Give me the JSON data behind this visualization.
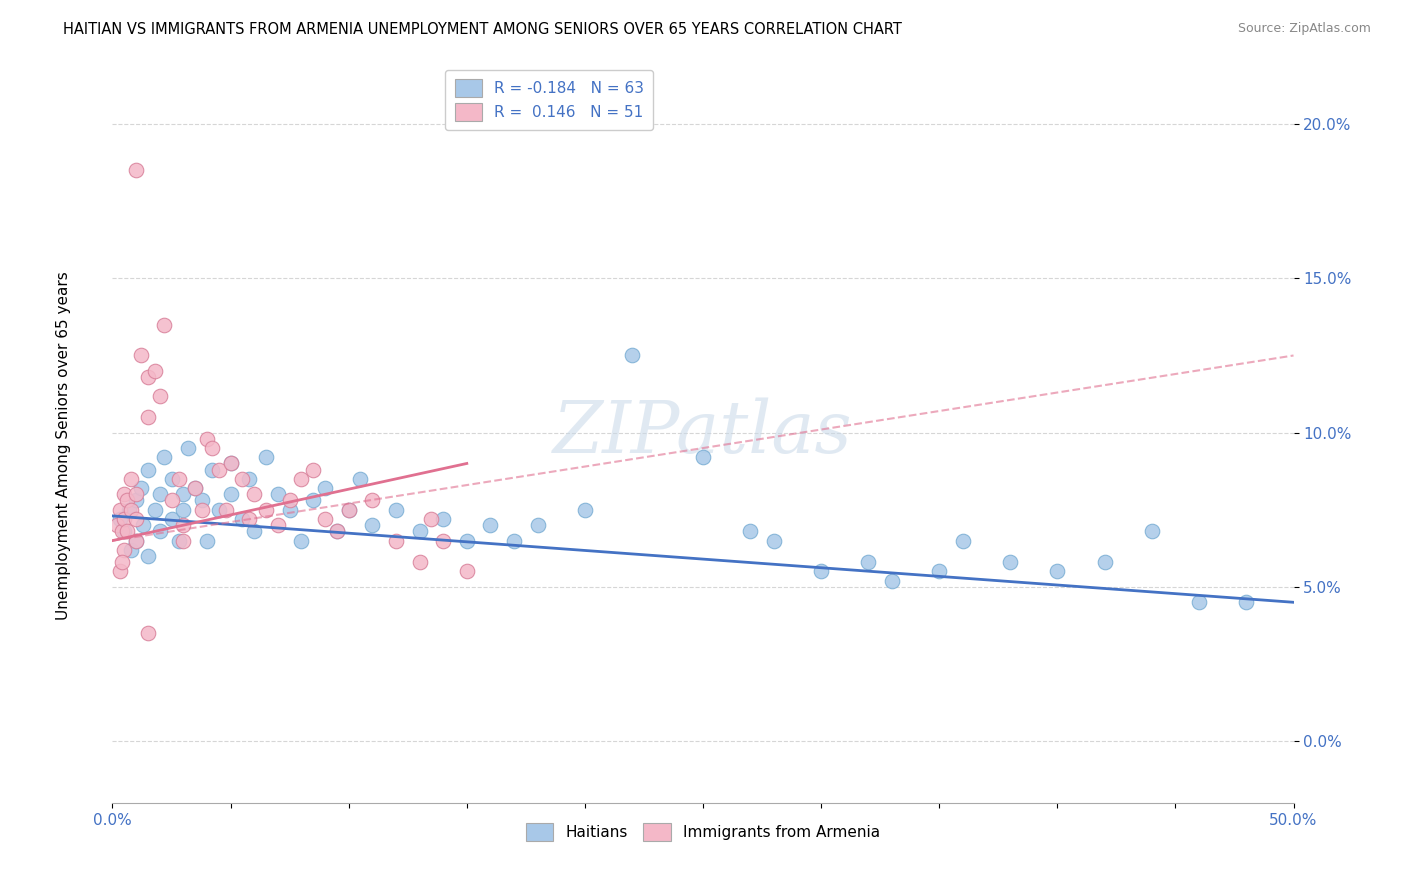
{
  "title": "HAITIAN VS IMMIGRANTS FROM ARMENIA UNEMPLOYMENT AMONG SENIORS OVER 65 YEARS CORRELATION CHART",
  "source": "Source: ZipAtlas.com",
  "ylabel": "Unemployment Among Seniors over 65 years",
  "ytick_values": [
    0.0,
    5.0,
    10.0,
    15.0,
    20.0
  ],
  "xlim": [
    0.0,
    50.0
  ],
  "ylim": [
    -2.0,
    22.0
  ],
  "legend_blue_label": "R = -0.184   N = 63",
  "legend_pink_label": "R =  0.146   N = 51",
  "legend_blue_color": "#a8c8e8",
  "legend_pink_color": "#f4b8c8",
  "watermark_text": "ZIPatlas",
  "blue_scatter": [
    [
      0.3,
      7.2
    ],
    [
      0.5,
      6.8
    ],
    [
      0.7,
      7.5
    ],
    [
      0.8,
      6.2
    ],
    [
      1.0,
      7.8
    ],
    [
      1.0,
      6.5
    ],
    [
      1.2,
      8.2
    ],
    [
      1.3,
      7.0
    ],
    [
      1.5,
      8.8
    ],
    [
      1.5,
      6.0
    ],
    [
      1.8,
      7.5
    ],
    [
      2.0,
      8.0
    ],
    [
      2.0,
      6.8
    ],
    [
      2.2,
      9.2
    ],
    [
      2.5,
      8.5
    ],
    [
      2.5,
      7.2
    ],
    [
      2.8,
      6.5
    ],
    [
      3.0,
      8.0
    ],
    [
      3.0,
      7.5
    ],
    [
      3.2,
      9.5
    ],
    [
      3.5,
      8.2
    ],
    [
      3.8,
      7.8
    ],
    [
      4.0,
      6.5
    ],
    [
      4.2,
      8.8
    ],
    [
      4.5,
      7.5
    ],
    [
      5.0,
      9.0
    ],
    [
      5.0,
      8.0
    ],
    [
      5.5,
      7.2
    ],
    [
      5.8,
      8.5
    ],
    [
      6.0,
      6.8
    ],
    [
      6.5,
      9.2
    ],
    [
      7.0,
      8.0
    ],
    [
      7.5,
      7.5
    ],
    [
      8.0,
      6.5
    ],
    [
      8.5,
      7.8
    ],
    [
      9.0,
      8.2
    ],
    [
      9.5,
      6.8
    ],
    [
      10.0,
      7.5
    ],
    [
      10.5,
      8.5
    ],
    [
      11.0,
      7.0
    ],
    [
      12.0,
      7.5
    ],
    [
      13.0,
      6.8
    ],
    [
      14.0,
      7.2
    ],
    [
      15.0,
      6.5
    ],
    [
      16.0,
      7.0
    ],
    [
      17.0,
      6.5
    ],
    [
      18.0,
      7.0
    ],
    [
      20.0,
      7.5
    ],
    [
      22.0,
      12.5
    ],
    [
      25.0,
      9.2
    ],
    [
      27.0,
      6.8
    ],
    [
      28.0,
      6.5
    ],
    [
      30.0,
      5.5
    ],
    [
      32.0,
      5.8
    ],
    [
      33.0,
      5.2
    ],
    [
      35.0,
      5.5
    ],
    [
      36.0,
      6.5
    ],
    [
      38.0,
      5.8
    ],
    [
      40.0,
      5.5
    ],
    [
      42.0,
      5.8
    ],
    [
      44.0,
      6.8
    ],
    [
      46.0,
      4.5
    ],
    [
      48.0,
      4.5
    ]
  ],
  "pink_scatter": [
    [
      0.2,
      7.0
    ],
    [
      0.3,
      7.5
    ],
    [
      0.4,
      6.8
    ],
    [
      0.5,
      8.0
    ],
    [
      0.5,
      7.2
    ],
    [
      0.6,
      7.8
    ],
    [
      0.8,
      8.5
    ],
    [
      0.8,
      7.5
    ],
    [
      1.0,
      8.0
    ],
    [
      1.0,
      6.5
    ],
    [
      1.0,
      18.5
    ],
    [
      1.2,
      12.5
    ],
    [
      1.5,
      11.8
    ],
    [
      1.5,
      10.5
    ],
    [
      1.8,
      12.0
    ],
    [
      2.0,
      11.2
    ],
    [
      2.2,
      13.5
    ],
    [
      2.5,
      7.8
    ],
    [
      2.8,
      8.5
    ],
    [
      3.0,
      7.0
    ],
    [
      3.0,
      6.5
    ],
    [
      3.5,
      8.2
    ],
    [
      3.8,
      7.5
    ],
    [
      4.0,
      9.8
    ],
    [
      4.2,
      9.5
    ],
    [
      4.5,
      8.8
    ],
    [
      4.8,
      7.5
    ],
    [
      5.0,
      9.0
    ],
    [
      5.5,
      8.5
    ],
    [
      5.8,
      7.2
    ],
    [
      6.0,
      8.0
    ],
    [
      6.5,
      7.5
    ],
    [
      7.0,
      7.0
    ],
    [
      7.5,
      7.8
    ],
    [
      8.0,
      8.5
    ],
    [
      8.5,
      8.8
    ],
    [
      9.0,
      7.2
    ],
    [
      9.5,
      6.8
    ],
    [
      10.0,
      7.5
    ],
    [
      11.0,
      7.8
    ],
    [
      12.0,
      6.5
    ],
    [
      13.0,
      5.8
    ],
    [
      13.5,
      7.2
    ],
    [
      14.0,
      6.5
    ],
    [
      15.0,
      5.5
    ],
    [
      0.5,
      6.2
    ],
    [
      0.6,
      6.8
    ],
    [
      1.0,
      7.2
    ],
    [
      0.3,
      5.5
    ],
    [
      0.4,
      5.8
    ],
    [
      1.5,
      3.5
    ]
  ],
  "blue_line": {
    "x0": 0,
    "y0": 7.3,
    "x1": 50,
    "y1": 4.5
  },
  "pink_line_solid": {
    "x0": 0,
    "y0": 6.5,
    "x1": 15,
    "y1": 9.0
  },
  "pink_line_dashed": {
    "x0": 0,
    "y0": 6.5,
    "x1": 50,
    "y1": 12.5
  },
  "blue_line_color": "#4472c4",
  "pink_line_color": "#e07090"
}
